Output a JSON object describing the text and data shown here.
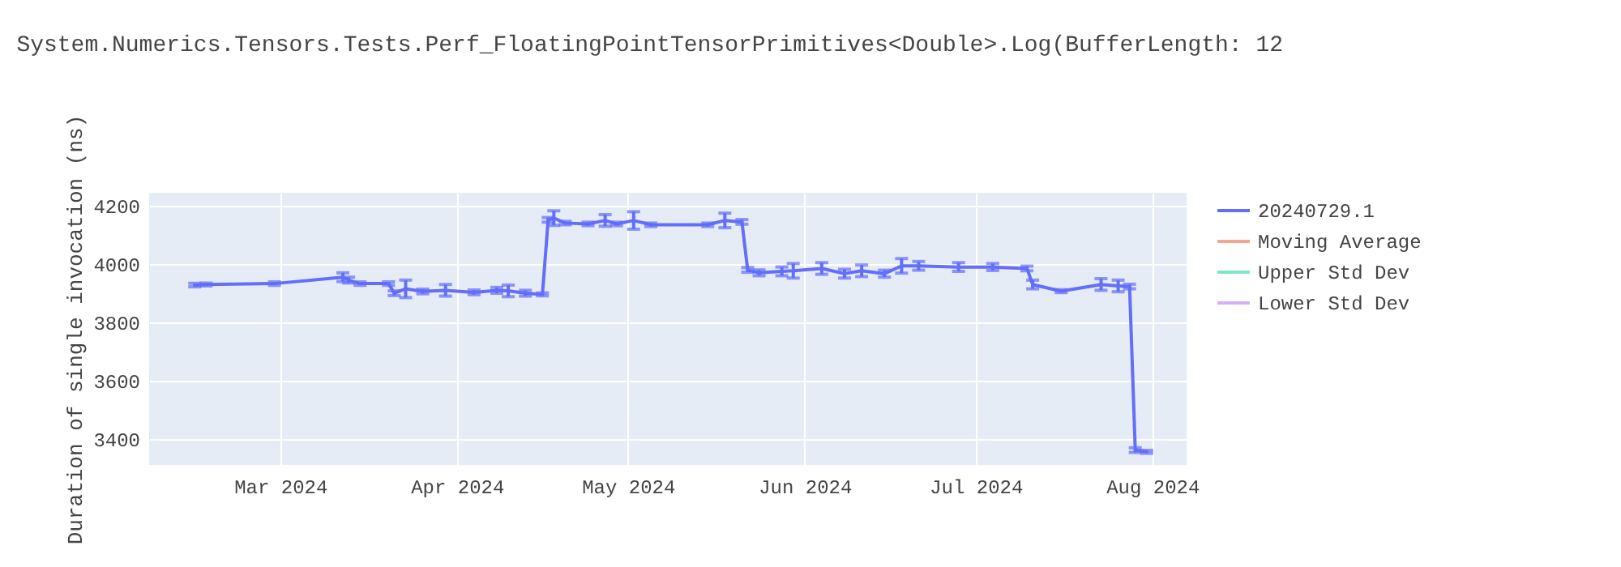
{
  "chart_data": {
    "type": "line",
    "title": "System.Numerics.Tensors.Tests.Perf_FloatingPointTensorPrimitives<Double>.Log(BufferLength: 12",
    "ylabel": "Duration of single invocation (ns)",
    "x": [
      "2024-02-15",
      "2024-02-17",
      "2024-02-29",
      "2024-03-12",
      "2024-03-13",
      "2024-03-15",
      "2024-03-20",
      "2024-03-21",
      "2024-03-23",
      "2024-03-26",
      "2024-03-30",
      "2024-04-04",
      "2024-04-08",
      "2024-04-10",
      "2024-04-13",
      "2024-04-16",
      "2024-04-17",
      "2024-04-18",
      "2024-04-20",
      "2024-04-24",
      "2024-04-27",
      "2024-04-29",
      "2024-05-02",
      "2024-05-05",
      "2024-05-15",
      "2024-05-18",
      "2024-05-21",
      "2024-05-22",
      "2024-05-24",
      "2024-05-28",
      "2024-05-30",
      "2024-06-04",
      "2024-06-08",
      "2024-06-11",
      "2024-06-15",
      "2024-06-18",
      "2024-06-21",
      "2024-06-28",
      "2024-07-04",
      "2024-07-10",
      "2024-07-11",
      "2024-07-16",
      "2024-07-23",
      "2024-07-26",
      "2024-07-28",
      "2024-07-29",
      "2024-07-31"
    ],
    "series": [
      {
        "name": "20240729.1",
        "color": "#636efa",
        "values": [
          3928,
          3930,
          3933,
          3955,
          3945,
          3933,
          3933,
          3900,
          3915,
          3906,
          3910,
          3903,
          3910,
          3908,
          3900,
          3896,
          4152,
          4158,
          4141,
          4138,
          4150,
          4138,
          4150,
          4135,
          4135,
          4150,
          4145,
          3980,
          3970,
          3975,
          3977,
          3985,
          3967,
          3977,
          3967,
          3994,
          3994,
          3990,
          3990,
          3985,
          3930,
          3907,
          3930,
          3925,
          3923,
          3361,
          3355
        ],
        "errors": [
          6,
          5,
          6,
          15,
          10,
          6,
          6,
          8,
          30,
          8,
          20,
          8,
          10,
          20,
          10,
          5,
          8,
          25,
          6,
          6,
          20,
          6,
          30,
          6,
          6,
          25,
          8,
          8,
          10,
          15,
          25,
          20,
          15,
          20,
          12,
          25,
          15,
          15,
          12,
          8,
          15,
          5,
          20,
          20,
          8,
          8,
          5
        ]
      },
      {
        "name": "Moving Average",
        "color": "#f4a58f",
        "values": [
          null,
          null,
          null,
          null,
          null,
          null,
          null,
          null,
          null,
          null,
          null,
          null,
          null,
          null,
          null,
          null,
          null,
          null,
          null,
          null,
          null,
          null,
          null,
          null,
          null,
          null,
          null,
          null,
          null,
          null,
          null,
          null,
          null,
          null,
          null,
          null,
          null,
          null,
          null,
          null,
          null,
          null,
          null,
          null,
          null,
          null,
          null
        ]
      },
      {
        "name": "Upper Std Dev",
        "color": "#7fe5c9",
        "values": [
          null,
          null,
          null,
          null,
          null,
          null,
          null,
          null,
          null,
          null,
          null,
          null,
          null,
          null,
          null,
          null,
          null,
          null,
          null,
          null,
          null,
          null,
          null,
          null,
          null,
          null,
          null,
          null,
          null,
          null,
          null,
          null,
          null,
          null,
          null,
          null,
          null,
          null,
          null,
          null,
          null,
          null,
          null,
          null,
          null,
          null,
          null
        ]
      },
      {
        "name": "Lower Std Dev",
        "color": "#d4b0fc",
        "values": [
          null,
          null,
          null,
          null,
          null,
          null,
          null,
          null,
          null,
          null,
          null,
          null,
          null,
          null,
          null,
          null,
          null,
          null,
          null,
          null,
          null,
          null,
          null,
          null,
          null,
          null,
          null,
          null,
          null,
          null,
          null,
          null,
          null,
          null,
          null,
          null,
          null,
          null,
          null,
          null,
          null,
          null,
          null,
          null,
          null,
          null,
          null
        ]
      }
    ],
    "xlim": [
      "2024-02-07",
      "2024-08-07"
    ],
    "xticks": [
      {
        "value": "2024-03-01",
        "label": "Mar 2024"
      },
      {
        "value": "2024-04-01",
        "label": "Apr 2024"
      },
      {
        "value": "2024-05-01",
        "label": "May 2024"
      },
      {
        "value": "2024-06-01",
        "label": "Jun 2024"
      },
      {
        "value": "2024-07-01",
        "label": "Jul 2024"
      },
      {
        "value": "2024-08-01",
        "label": "Aug 2024"
      }
    ],
    "ylim": [
      3310,
      4245
    ],
    "yticks": [
      3400,
      3600,
      3800,
      4000,
      4200
    ],
    "grid": true,
    "legend": "right"
  }
}
